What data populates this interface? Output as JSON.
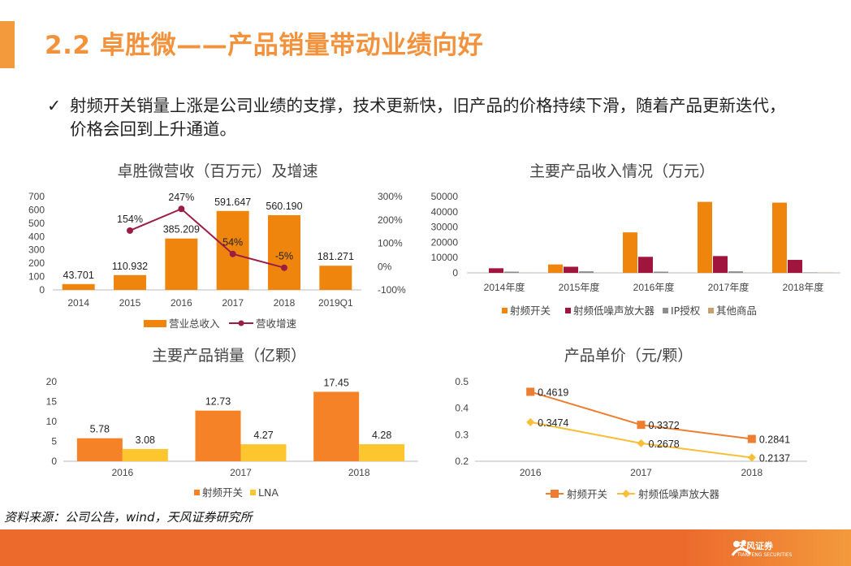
{
  "title": "2.2 卓胜微——产品销量带动业绩向好",
  "bullet": {
    "check": "✓",
    "text": "射频开关销量上涨是公司业绩的支撑，技术更新快，旧产品的价格持续下滑，随着产品更新迭代，价格会回到上升通道。"
  },
  "source": "资料来源：公司公告，wind，天风证券研究所",
  "footer": {
    "logo_text": "天风证券",
    "logo_sub": "TIANFENG SECURITIES"
  },
  "colors": {
    "orange": "#f0850d",
    "crimson": "#a0153e",
    "gray": "#8c8c8c",
    "tan": "#c8a070",
    "orange2": "#f58226",
    "yellow": "#fdc52e",
    "line_red": "#9b1c45",
    "line_orange": "#ed7d31",
    "line_yellow": "#f7be3a"
  },
  "chart_data": [
    {
      "type": "bar",
      "title": "卓胜微营收（百万元）及增速",
      "categories": [
        "2014",
        "2015",
        "2016",
        "2017",
        "2018",
        "2019Q1"
      ],
      "series": [
        {
          "name": "营业总收入",
          "values": [
            43.701,
            110.932,
            385.209,
            591.647,
            560.19,
            181.271
          ],
          "labels": [
            "43.701",
            "110.932",
            "385.209",
            "591.647",
            "560.190",
            "181.271"
          ]
        },
        {
          "name": "营收增速",
          "type": "line",
          "axis": "right",
          "values": [
            null,
            154,
            247,
            54,
            -5,
            null
          ],
          "labels": [
            "",
            "154%",
            "247%",
            "54%",
            "-5%",
            ""
          ]
        }
      ],
      "ylim": [
        0,
        700
      ],
      "yticks": [
        "0",
        "100",
        "200",
        "300",
        "400",
        "500",
        "600",
        "700"
      ],
      "y2lim": [
        -100,
        300
      ],
      "y2ticks": [
        "-100%",
        "0%",
        "100%",
        "200%",
        "300%"
      ],
      "legend": "bottom"
    },
    {
      "type": "bar",
      "title": "主要产品收入情况（万元）",
      "categories": [
        "2014年度",
        "2015年度",
        "2016年度",
        "2017年度",
        "2018年度"
      ],
      "series": [
        {
          "name": "射频开关",
          "values": [
            0,
            5500,
            26500,
            46500,
            46000
          ]
        },
        {
          "name": "射频低噪声放大器",
          "values": [
            3000,
            4000,
            10500,
            11000,
            8500
          ]
        },
        {
          "name": "IP授权",
          "values": [
            800,
            1000,
            800,
            1000,
            300
          ]
        },
        {
          "name": "其他商品",
          "values": [
            100,
            100,
            100,
            100,
            200
          ]
        }
      ],
      "ylim": [
        0,
        50000
      ],
      "yticks": [
        "0",
        "10000",
        "20000",
        "30000",
        "40000",
        "50000"
      ],
      "legend": "bottom"
    },
    {
      "type": "bar",
      "title": "主要产品销量（亿颗）",
      "categories": [
        "2016",
        "2017",
        "2018"
      ],
      "series": [
        {
          "name": "射频开关",
          "values": [
            5.78,
            12.73,
            17.45
          ],
          "labels": [
            "5.78",
            "12.73",
            "17.45"
          ]
        },
        {
          "name": "LNA",
          "values": [
            3.08,
            4.27,
            4.28
          ],
          "labels": [
            "3.08",
            "4.27",
            "4.28"
          ]
        }
      ],
      "ylim": [
        0,
        20
      ],
      "yticks": [
        "0",
        "5",
        "10",
        "15",
        "20"
      ],
      "legend": "bottom"
    },
    {
      "type": "line",
      "title": "产品单价（元/颗）",
      "categories": [
        "2016",
        "2017",
        "2018"
      ],
      "series": [
        {
          "name": "射频开关",
          "values": [
            0.4619,
            0.3372,
            0.2841
          ],
          "labels": [
            "0.4619",
            "0.3372",
            "0.2841"
          ]
        },
        {
          "name": "射频低噪声放大器",
          "values": [
            0.3474,
            0.2678,
            0.2137
          ],
          "labels": [
            "0.3474",
            "0.2678",
            "0.2137"
          ]
        }
      ],
      "ylim": [
        0.2,
        0.5
      ],
      "yticks": [
        "0.2",
        "0.3",
        "0.4",
        "0.5"
      ],
      "legend": "bottom"
    }
  ]
}
